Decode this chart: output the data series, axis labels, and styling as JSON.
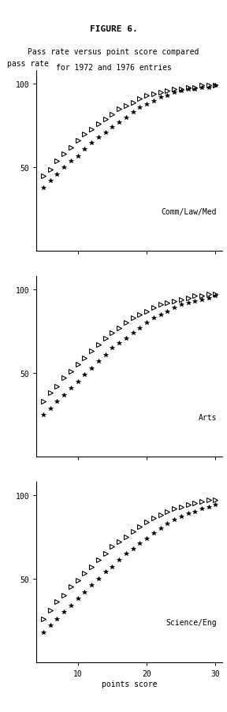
{
  "title": "FIGURE 6.",
  "subtitle1": "Pass rate versus point score compared",
  "subtitle2": "for 1972 and 1976 entries",
  "ylabel": "pass rate",
  "xlabel": "points score",
  "panels": [
    {
      "label": "Comm/Law/Med",
      "curve_1972": {
        "x": [
          5,
          6,
          7,
          8,
          9,
          10,
          11,
          12,
          13,
          14,
          15,
          16,
          17,
          18,
          19,
          20,
          21,
          22,
          23,
          24,
          25,
          26,
          27,
          28,
          29,
          30
        ],
        "y": [
          38,
          42,
          46,
          50,
          54,
          57,
          61,
          65,
          68,
          71,
          74,
          77,
          80,
          83,
          86,
          88,
          90,
          92,
          93,
          95,
          96,
          97,
          97,
          98,
          98,
          99
        ]
      },
      "curve_1976": {
        "x": [
          5,
          6,
          7,
          8,
          9,
          10,
          11,
          12,
          13,
          14,
          15,
          16,
          17,
          18,
          19,
          20,
          21,
          22,
          23,
          24,
          25,
          26,
          27,
          28,
          29,
          30
        ],
        "y": [
          45,
          49,
          54,
          58,
          62,
          66,
          70,
          73,
          76,
          79,
          82,
          85,
          87,
          89,
          91,
          93,
          94,
          95,
          96,
          97,
          97,
          98,
          98,
          99,
          99,
          99
        ]
      }
    },
    {
      "label": "Arts",
      "curve_1972": {
        "x": [
          5,
          6,
          7,
          8,
          9,
          10,
          11,
          12,
          13,
          14,
          15,
          16,
          17,
          18,
          19,
          20,
          21,
          22,
          23,
          24,
          25,
          26,
          27,
          28,
          29,
          30
        ],
        "y": [
          25,
          29,
          33,
          37,
          41,
          45,
          49,
          53,
          57,
          61,
          65,
          68,
          71,
          74,
          77,
          80,
          83,
          85,
          87,
          89,
          91,
          92,
          93,
          94,
          95,
          96
        ]
      },
      "curve_1976": {
        "x": [
          5,
          6,
          7,
          8,
          9,
          10,
          11,
          12,
          13,
          14,
          15,
          16,
          17,
          18,
          19,
          20,
          21,
          22,
          23,
          24,
          25,
          26,
          27,
          28,
          29,
          30
        ],
        "y": [
          33,
          38,
          42,
          47,
          51,
          55,
          59,
          63,
          67,
          71,
          74,
          77,
          80,
          83,
          85,
          87,
          89,
          91,
          92,
          93,
          94,
          95,
          96,
          96,
          97,
          97
        ]
      }
    },
    {
      "label": "Science/Eng",
      "curve_1972": {
        "x": [
          5,
          6,
          7,
          8,
          9,
          10,
          11,
          12,
          13,
          14,
          15,
          16,
          17,
          18,
          19,
          20,
          21,
          22,
          23,
          24,
          25,
          26,
          27,
          28,
          29,
          30
        ],
        "y": [
          18,
          22,
          26,
          30,
          34,
          38,
          42,
          46,
          50,
          54,
          57,
          61,
          65,
          68,
          71,
          74,
          77,
          80,
          83,
          85,
          87,
          89,
          90,
          92,
          93,
          94
        ]
      },
      "curve_1976": {
        "x": [
          5,
          6,
          7,
          8,
          9,
          10,
          11,
          12,
          13,
          14,
          15,
          16,
          17,
          18,
          19,
          20,
          21,
          22,
          23,
          24,
          25,
          26,
          27,
          28,
          29,
          30
        ],
        "y": [
          26,
          31,
          36,
          40,
          45,
          49,
          53,
          57,
          61,
          65,
          69,
          72,
          75,
          78,
          81,
          84,
          86,
          88,
          90,
          92,
          93,
          94,
          95,
          96,
          97,
          97
        ]
      }
    }
  ],
  "marker_1972": "*",
  "marker_1976": "4",
  "marker_size_1972": 4,
  "marker_size_1976": 5,
  "color": "black",
  "xlim": [
    4,
    31
  ],
  "xticks": [
    10,
    20,
    30
  ],
  "ylim": [
    0,
    108
  ],
  "yticks": [
    50,
    100
  ],
  "tick_fontsize": 7,
  "title_fontsize": 8,
  "subtitle_fontsize": 7,
  "panel_label_fontsize": 7,
  "ylabel_fontsize": 7,
  "xlabel_fontsize": 7
}
